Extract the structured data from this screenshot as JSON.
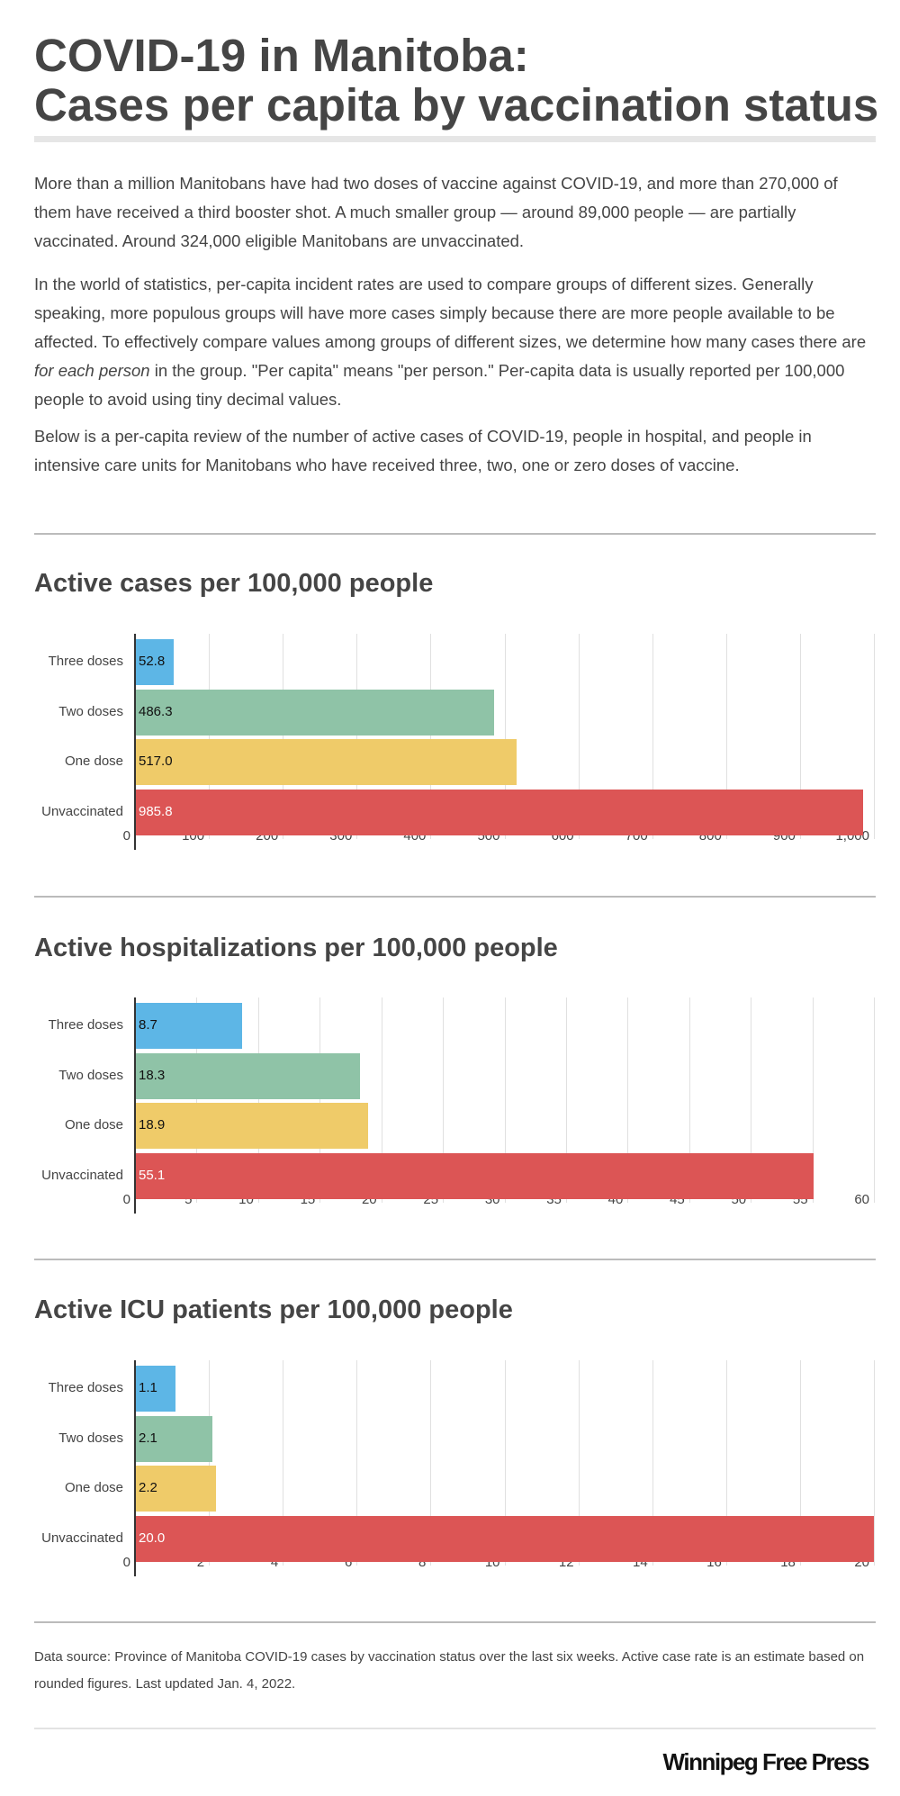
{
  "title_line1": "COVID-19 in Manitoba:",
  "title_line2": "Cases per capita by vaccination status",
  "intro": {
    "p1": "More than a million Manitobans have had two doses of vaccine against COVID-19, and more than 270,000 of them have received a third booster shot.  A much smaller group — around 89,000 people — are partially vaccinated. Around 324,000 eligible Manitobans are unvaccinated.",
    "p2_a": "In the world of statistics, per-capita incident rates are used to compare groups of different sizes. Generally speaking, more populous groups will have more cases simply because there are more people available to be affected. To effectively compare values among groups of different sizes, we determine how many cases there are ",
    "p2_em": "for each person",
    "p2_b": " in the group. \"Per capita\" means \"per person.\"  Per-capita data is usually reported per 100,000 people to avoid using tiny decimal values.",
    "p3": "Below is a per-capita review of the number of active cases of COVID-19, people in hospital, and people in intensive care units for Manitobans who have received three, two, one or zero doses of vaccine."
  },
  "colors": [
    "#5db6e6",
    "#8fc3a7",
    "#efcb69",
    "#dc5555"
  ],
  "chart_data": [
    {
      "type": "bar",
      "title": "Active cases per 100,000 people",
      "categories": [
        "Three doses",
        "Two doses",
        "One dose",
        "Unvaccinated"
      ],
      "values": [
        52.8,
        486.3,
        517.0,
        985.8
      ],
      "labels": [
        "52.8",
        "486.3",
        "517.0",
        "985.8"
      ],
      "xlim": [
        0,
        1000
      ],
      "ticks": [
        "0",
        "100",
        "200",
        "300",
        "400",
        "500",
        "600",
        "700",
        "800",
        "900",
        "1,000"
      ]
    },
    {
      "type": "bar",
      "title": "Active hospitalizations per 100,000 people",
      "categories": [
        "Three doses",
        "Two doses",
        "One dose",
        "Unvaccinated"
      ],
      "values": [
        8.7,
        18.3,
        18.9,
        55.1
      ],
      "labels": [
        "8.7",
        "18.3",
        "18.9",
        "55.1"
      ],
      "xlim": [
        0,
        60
      ],
      "ticks": [
        "0",
        "5",
        "10",
        "15",
        "20",
        "25",
        "30",
        "35",
        "40",
        "45",
        "50",
        "55",
        "60"
      ]
    },
    {
      "type": "bar",
      "title": "Active ICU patients per 100,000 people",
      "categories": [
        "Three doses",
        "Two doses",
        "One dose",
        "Unvaccinated"
      ],
      "values": [
        1.1,
        2.1,
        2.2,
        20.0
      ],
      "labels": [
        "1.1",
        "2.1",
        "2.2",
        "20.0"
      ],
      "xlim": [
        0,
        20
      ],
      "ticks": [
        "0",
        "2",
        "4",
        "6",
        "8",
        "10",
        "12",
        "14",
        "16",
        "18",
        "20"
      ]
    }
  ],
  "footnote": "Data source: Province of Manitoba COVID-19 cases by vaccination status over the last six weeks.  Active case rate is an estimate based on rounded figures. Last updated Jan. 4, 2022.",
  "logo": "Winnipeg Free Press"
}
